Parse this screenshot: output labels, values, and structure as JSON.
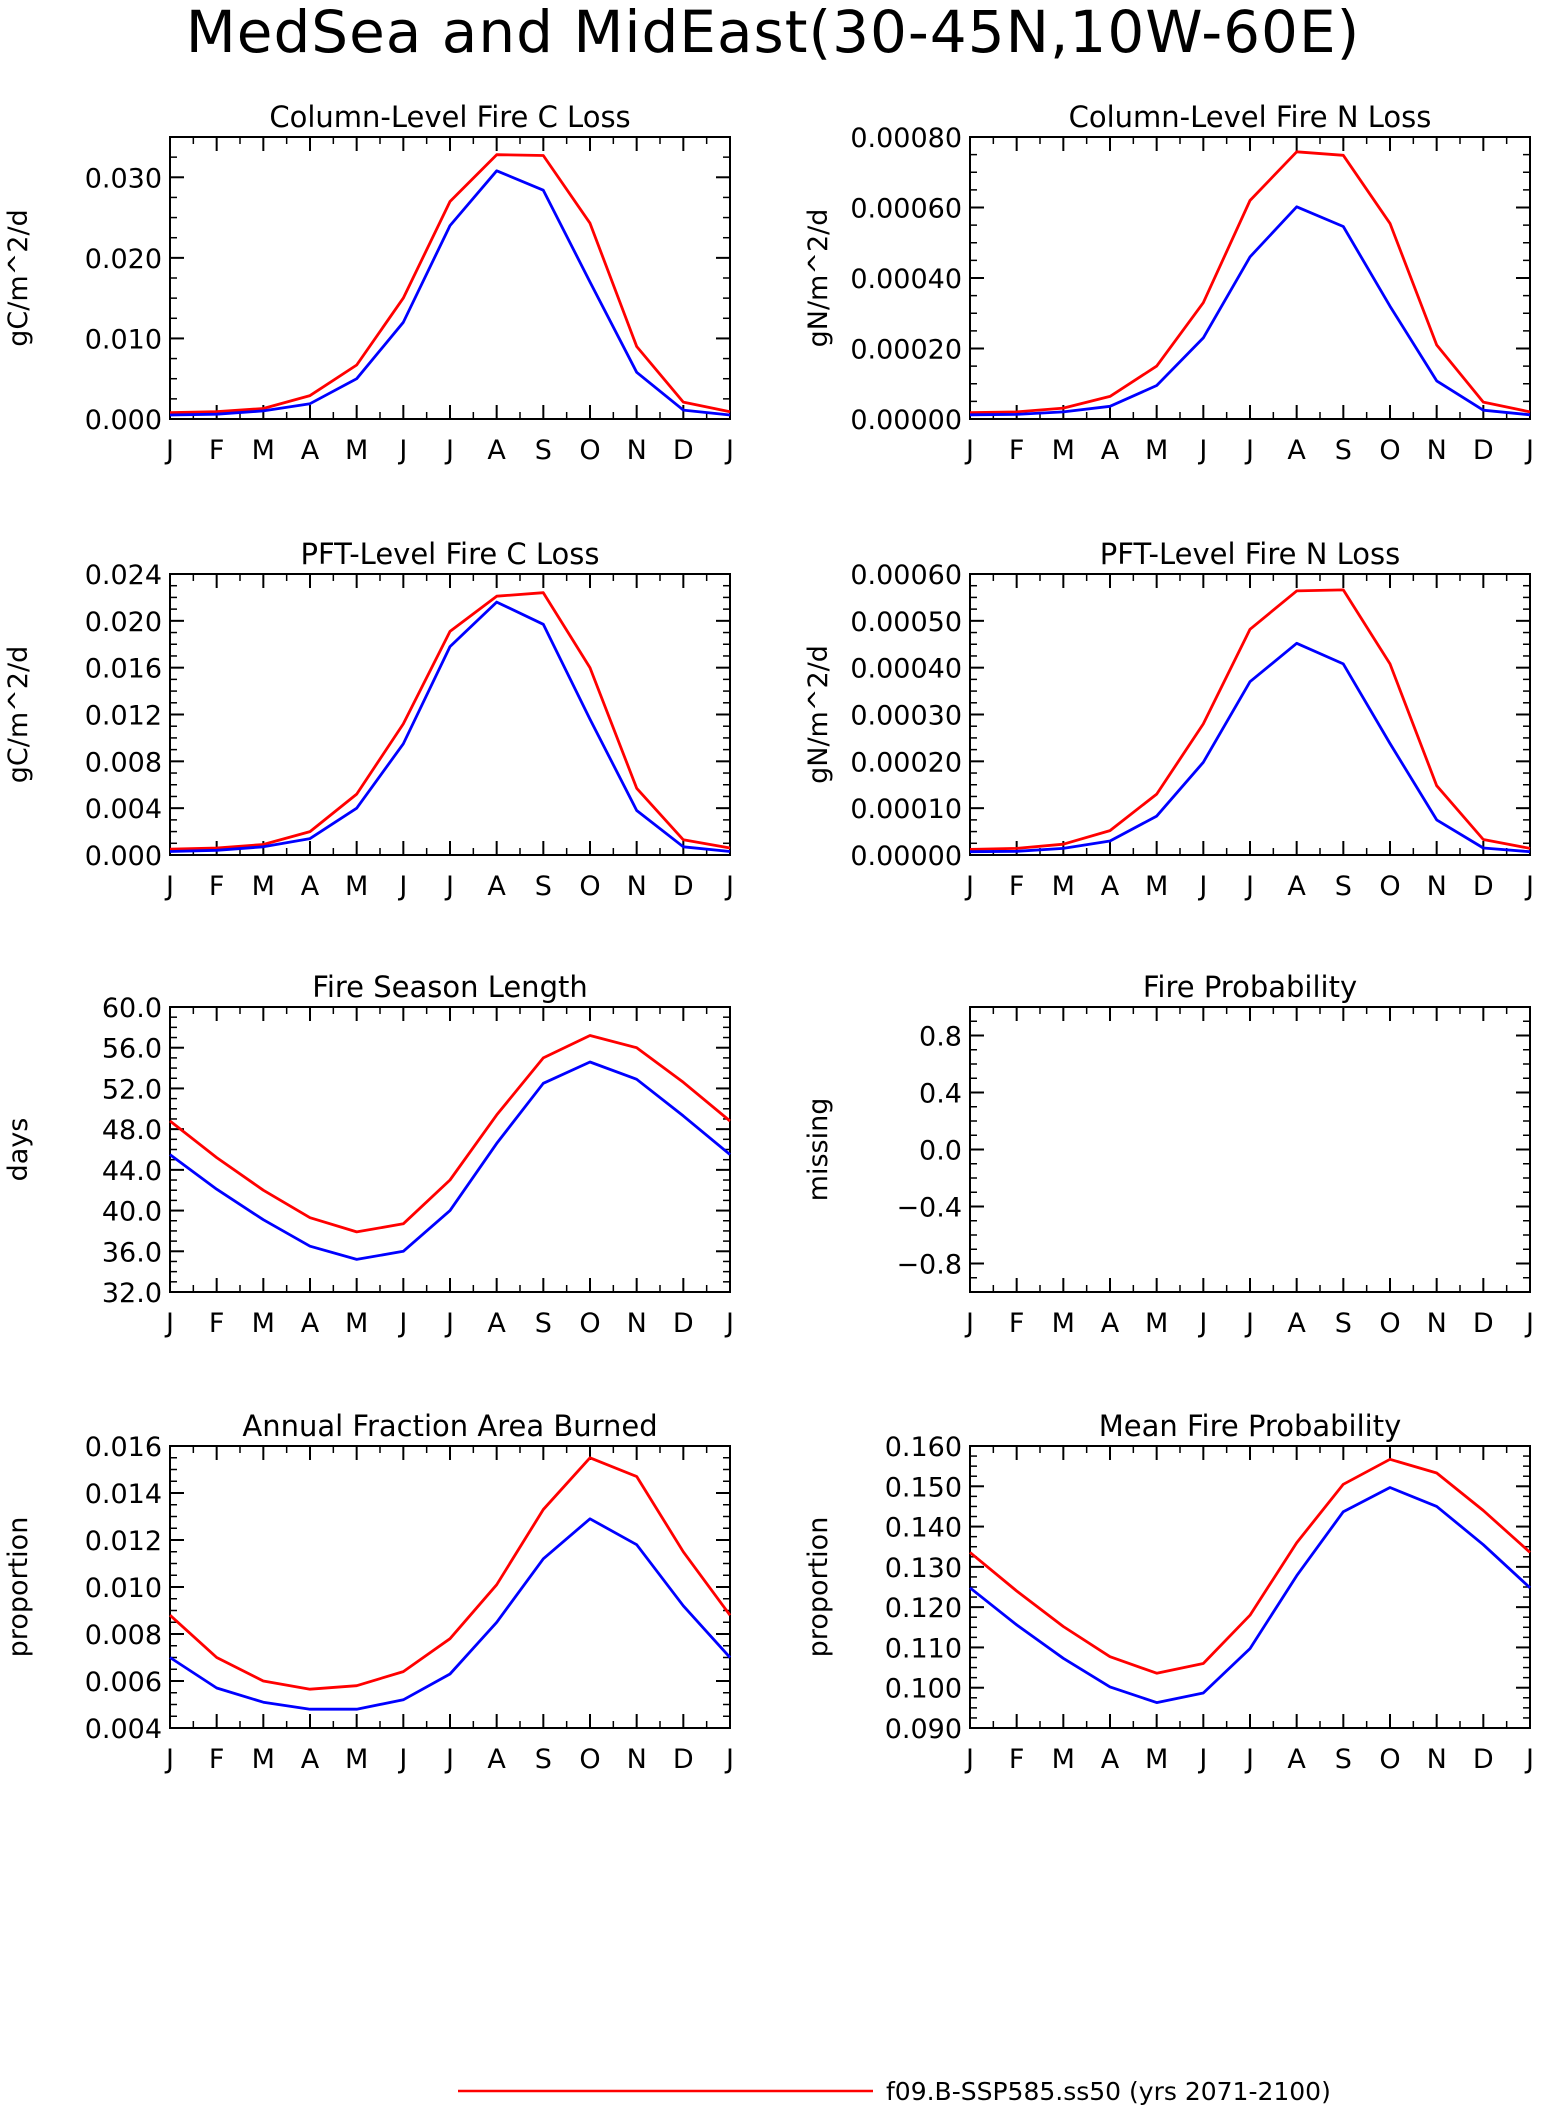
{
  "figure": {
    "title": "MedSea and MidEast(30-45N,10W-60E)",
    "legend": [
      {
        "label": "f09.B-SSP585.ss50 (yrs 2071-2100)",
        "color": "#ff0000"
      }
    ]
  },
  "chart_data": [
    {
      "type": "line",
      "title": "Column-Level Fire C Loss",
      "ylabel": "gC/m^2/d",
      "categories": [
        "J",
        "F",
        "M",
        "A",
        "M",
        "J",
        "J",
        "A",
        "S",
        "O",
        "N",
        "D",
        "J"
      ],
      "ylim": [
        0,
        0.035
      ],
      "yticks": [
        0.0,
        0.01,
        0.02,
        0.03
      ],
      "ytick_labels": [
        "0.000",
        "0.010",
        "0.020",
        "0.030"
      ],
      "series": [
        {
          "color": "#ff0000",
          "values": [
            0.0008,
            0.0009,
            0.0013,
            0.0029,
            0.0067,
            0.015,
            0.027,
            0.0328,
            0.0327,
            0.0243,
            0.009,
            0.0021,
            0.0009
          ]
        },
        {
          "color": "#0000ff",
          "values": [
            0.0005,
            0.0006,
            0.001,
            0.0019,
            0.005,
            0.012,
            0.024,
            0.0308,
            0.0284,
            0.017,
            0.0058,
            0.0011,
            0.0005
          ]
        }
      ]
    },
    {
      "type": "line",
      "title": "Column-Level Fire N Loss",
      "ylabel": "gN/m^2/d",
      "categories": [
        "J",
        "F",
        "M",
        "A",
        "M",
        "J",
        "J",
        "A",
        "S",
        "O",
        "N",
        "D",
        "J"
      ],
      "ylim": [
        0,
        0.0008
      ],
      "yticks": [
        0,
        0.0002,
        0.0004,
        0.0006,
        0.0008
      ],
      "ytick_labels": [
        "0.00000",
        "0.00020",
        "0.00040",
        "0.00060",
        "0.00080"
      ],
      "series": [
        {
          "color": "#ff0000",
          "values": [
            1.8e-05,
            2e-05,
            3.1e-05,
            6.4e-05,
            0.00015,
            0.00033,
            0.00062,
            0.000758,
            0.000748,
            0.000555,
            0.00021,
            4.8e-05,
            2e-05
          ]
        },
        {
          "color": "#0000ff",
          "values": [
            1.2e-05,
            1.3e-05,
            2e-05,
            3.6e-05,
            9.5e-05,
            0.00023,
            0.00046,
            0.000602,
            0.000546,
            0.00032,
            0.000108,
            2.5e-05,
            1.2e-05
          ]
        }
      ]
    },
    {
      "type": "line",
      "title": "PFT-Level Fire C Loss",
      "ylabel": "gC/m^2/d",
      "categories": [
        "J",
        "F",
        "M",
        "A",
        "M",
        "J",
        "J",
        "A",
        "S",
        "O",
        "N",
        "D",
        "J"
      ],
      "ylim": [
        0,
        0.024
      ],
      "yticks": [
        0,
        0.004,
        0.008,
        0.012,
        0.016,
        0.02,
        0.024
      ],
      "ytick_labels": [
        "0.000",
        "0.004",
        "0.008",
        "0.012",
        "0.016",
        "0.020",
        "0.024"
      ],
      "series": [
        {
          "color": "#ff0000",
          "values": [
            0.0005,
            0.0006,
            0.0009,
            0.002,
            0.0052,
            0.0112,
            0.0191,
            0.0221,
            0.0224,
            0.016,
            0.0057,
            0.0013,
            0.0006
          ]
        },
        {
          "color": "#0000ff",
          "values": [
            0.0003,
            0.0004,
            0.0007,
            0.0014,
            0.004,
            0.0095,
            0.0178,
            0.0216,
            0.0197,
            0.0116,
            0.0038,
            0.0007,
            0.0003
          ]
        }
      ]
    },
    {
      "type": "line",
      "title": "PFT-Level Fire N Loss",
      "ylabel": "gN/m^2/d",
      "categories": [
        "J",
        "F",
        "M",
        "A",
        "M",
        "J",
        "J",
        "A",
        "S",
        "O",
        "N",
        "D",
        "J"
      ],
      "ylim": [
        0,
        0.0006
      ],
      "yticks": [
        0,
        0.0001,
        0.0002,
        0.0003,
        0.0004,
        0.0005,
        0.0006
      ],
      "ytick_labels": [
        "0.00000",
        "0.00010",
        "0.00020",
        "0.00030",
        "0.00040",
        "0.00050",
        "0.00060"
      ],
      "series": [
        {
          "color": "#ff0000",
          "values": [
            1.2e-05,
            1.4e-05,
            2.3e-05,
            5.2e-05,
            0.00013,
            0.00028,
            0.000482,
            0.000564,
            0.000566,
            0.000408,
            0.000148,
            3.3e-05,
            1.4e-05
          ]
        },
        {
          "color": "#0000ff",
          "values": [
            7e-06,
            8e-06,
            1.4e-05,
            3e-05,
            8.3e-05,
            0.000198,
            0.00037,
            0.000452,
            0.000408,
            0.000238,
            7.5e-05,
            1.5e-05,
            7e-06
          ]
        }
      ]
    },
    {
      "type": "line",
      "title": "Fire Season Length",
      "ylabel": "days",
      "categories": [
        "J",
        "F",
        "M",
        "A",
        "M",
        "J",
        "J",
        "A",
        "S",
        "O",
        "N",
        "D",
        "J"
      ],
      "ylim": [
        32,
        60
      ],
      "yticks": [
        32,
        36,
        40,
        44,
        48,
        52,
        56,
        60
      ],
      "ytick_labels": [
        "32.0",
        "36.0",
        "40.0",
        "44.0",
        "48.0",
        "52.0",
        "56.0",
        "60.0"
      ],
      "series": [
        {
          "color": "#ff0000",
          "values": [
            48.8,
            45.2,
            42.0,
            39.3,
            37.9,
            38.7,
            43.0,
            49.4,
            55.0,
            57.2,
            56.0,
            52.6,
            48.8
          ]
        },
        {
          "color": "#0000ff",
          "values": [
            45.5,
            42.1,
            39.1,
            36.5,
            35.2,
            36.0,
            40.0,
            46.6,
            52.5,
            54.6,
            52.9,
            49.3,
            45.5
          ]
        }
      ]
    },
    {
      "type": "line",
      "title": "Fire Probability",
      "ylabel": "missing",
      "categories": [
        "J",
        "F",
        "M",
        "A",
        "M",
        "J",
        "J",
        "A",
        "S",
        "O",
        "N",
        "D",
        "J"
      ],
      "ylim": [
        -1,
        1
      ],
      "yticks": [
        -0.8,
        -0.4,
        0.0,
        0.4,
        0.8
      ],
      "ytick_labels": [
        "−0.8",
        "−0.4",
        "0.0",
        "0.4",
        "0.8"
      ],
      "series": []
    },
    {
      "type": "line",
      "title": "Annual Fraction Area Burned",
      "ylabel": "proportion",
      "categories": [
        "J",
        "F",
        "M",
        "A",
        "M",
        "J",
        "J",
        "A",
        "S",
        "O",
        "N",
        "D",
        "J"
      ],
      "ylim": [
        0.004,
        0.016
      ],
      "yticks": [
        0.004,
        0.006,
        0.008,
        0.01,
        0.012,
        0.014,
        0.016
      ],
      "ytick_labels": [
        "0.004",
        "0.006",
        "0.008",
        "0.010",
        "0.012",
        "0.014",
        "0.016"
      ],
      "series": [
        {
          "color": "#ff0000",
          "values": [
            0.0088,
            0.007,
            0.006,
            0.00565,
            0.0058,
            0.0064,
            0.0078,
            0.0101,
            0.0133,
            0.0155,
            0.0147,
            0.0115,
            0.0088
          ]
        },
        {
          "color": "#0000ff",
          "values": [
            0.007,
            0.0057,
            0.0051,
            0.0048,
            0.0048,
            0.0052,
            0.0063,
            0.0085,
            0.0112,
            0.0129,
            0.0118,
            0.0092,
            0.007
          ]
        }
      ]
    },
    {
      "type": "line",
      "title": "Mean Fire Probability",
      "ylabel": "proportion",
      "categories": [
        "J",
        "F",
        "M",
        "A",
        "M",
        "J",
        "J",
        "A",
        "S",
        "O",
        "N",
        "D",
        "J"
      ],
      "ylim": [
        0.09,
        0.16
      ],
      "yticks": [
        0.09,
        0.1,
        0.11,
        0.12,
        0.13,
        0.14,
        0.15,
        0.16
      ],
      "ytick_labels": [
        "0.090",
        "0.100",
        "0.110",
        "0.120",
        "0.130",
        "0.140",
        "0.150",
        "0.160"
      ],
      "series": [
        {
          "color": "#ff0000",
          "values": [
            0.1336,
            0.124,
            0.1152,
            0.1077,
            0.1036,
            0.106,
            0.118,
            0.136,
            0.1505,
            0.1567,
            0.1533,
            0.144,
            0.1336
          ]
        },
        {
          "color": "#0000ff",
          "values": [
            0.1248,
            0.1156,
            0.1073,
            0.1002,
            0.0963,
            0.0987,
            0.1097,
            0.1278,
            0.1437,
            0.1497,
            0.145,
            0.1355,
            0.1248
          ]
        }
      ]
    }
  ]
}
